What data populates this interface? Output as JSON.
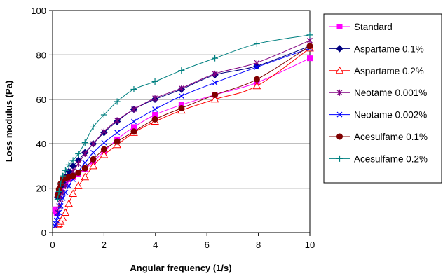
{
  "chart_data": {
    "type": "line",
    "title": "",
    "xlabel": "Angular frequency  (1/s)",
    "ylabel": "Loss modulus (Pa)",
    "xlim": [
      0,
      10
    ],
    "ylim": [
      0,
      100
    ],
    "xticks": [
      0,
      2,
      4,
      6,
      8,
      10
    ],
    "yticks": [
      0,
      20,
      40,
      60,
      80,
      100
    ],
    "grid": "horizontal",
    "legend_position": "right",
    "series": [
      {
        "name": "Standard",
        "color": "#ff00ff",
        "marker": "square",
        "x": [
          0.1,
          0.126,
          0.158,
          0.2,
          0.251,
          0.316,
          0.398,
          0.501,
          0.631,
          0.794,
          1.0,
          1.26,
          1.58,
          2.0,
          2.51,
          3.16,
          3.98,
          5.01,
          6.31,
          7.94,
          10.0
        ],
        "y": [
          10.5,
          9.5,
          8.5,
          17.0,
          18.5,
          20.0,
          21.5,
          22.5,
          24.0,
          25.0,
          26.5,
          28.5,
          32.0,
          36.5,
          42.0,
          47.5,
          53.0,
          57.5,
          62.0,
          67.5,
          78.5
        ]
      },
      {
        "name": "Aspartame 0.1%",
        "color": "#000080",
        "marker": "diamond",
        "x": [
          0.2,
          0.251,
          0.316,
          0.398,
          0.501,
          0.631,
          0.794,
          1.0,
          1.26,
          1.58,
          2.0,
          2.51,
          3.16,
          3.98,
          5.01,
          6.31,
          7.94,
          10.0
        ],
        "y": [
          16.0,
          18.0,
          20.5,
          22.5,
          25.0,
          27.5,
          30.0,
          32.5,
          36.0,
          40.0,
          45.0,
          50.0,
          55.5,
          60.0,
          64.5,
          71.0,
          75.0,
          84.0
        ]
      },
      {
        "name": "Aspartame 0.2%",
        "color": "#ff0000",
        "marker": "triangle",
        "x": [
          0.2,
          0.251,
          0.316,
          0.398,
          0.501,
          0.631,
          0.794,
          1.0,
          1.26,
          1.58,
          2.0,
          2.51,
          3.16,
          3.98,
          5.01,
          6.31,
          7.94,
          10.0
        ],
        "y": [
          3.5,
          4.0,
          5.0,
          6.5,
          9.0,
          13.0,
          17.5,
          21.0,
          25.0,
          30.0,
          35.0,
          39.5,
          45.0,
          50.0,
          55.0,
          60.0,
          66.0,
          83.0
        ]
      },
      {
        "name": "Neotame 0.001%",
        "color": "#800080",
        "marker": "star",
        "x": [
          0.2,
          0.251,
          0.316,
          0.398,
          0.501,
          0.631,
          0.794,
          1.0,
          1.26,
          1.58,
          2.0,
          2.51,
          3.16,
          3.98,
          5.01,
          6.31,
          7.94,
          10.0
        ],
        "y": [
          9.0,
          12.0,
          15.0,
          18.0,
          21.0,
          24.0,
          27.5,
          31.0,
          35.5,
          40.0,
          45.5,
          50.5,
          55.5,
          60.5,
          65.0,
          71.5,
          76.5,
          86.5
        ]
      },
      {
        "name": "Neotame 0.002%",
        "color": "#0000ff",
        "marker": "x",
        "x": [
          0.1,
          0.126,
          0.158,
          0.2,
          0.251,
          0.316,
          0.398,
          0.501,
          0.631,
          0.794,
          1.0,
          1.26,
          1.58,
          2.0,
          2.51,
          3.16,
          3.98,
          5.01,
          6.31,
          7.94,
          10.0
        ],
        "y": [
          3.0,
          4.0,
          5.5,
          7.0,
          9.0,
          12.0,
          15.5,
          18.0,
          21.0,
          24.0,
          27.5,
          31.5,
          36.0,
          40.5,
          45.0,
          50.0,
          55.5,
          61.5,
          67.5,
          74.5,
          83.0
        ]
      },
      {
        "name": "Acesulfame 0.1%",
        "color": "#800000",
        "marker": "circle",
        "x": [
          0.2,
          0.251,
          0.316,
          0.398,
          0.501,
          0.631,
          0.794,
          1.0,
          1.26,
          1.58,
          2.0,
          2.51,
          3.16,
          3.98,
          5.01,
          6.31,
          7.94,
          10.0
        ],
        "y": [
          17.0,
          19.5,
          22.0,
          24.0,
          24.5,
          25.0,
          25.5,
          27.0,
          29.0,
          33.0,
          37.5,
          41.0,
          45.5,
          51.0,
          56.0,
          62.0,
          69.0,
          84.0
        ]
      },
      {
        "name": "Acesulfame 0.2%",
        "color": "#008080",
        "marker": "plus",
        "x": [
          0.2,
          0.251,
          0.316,
          0.398,
          0.501,
          0.631,
          0.794,
          1.0,
          1.26,
          1.58,
          2.0,
          2.51,
          3.16,
          3.98,
          5.01,
          6.31,
          7.94,
          10.0
        ],
        "y": [
          15.0,
          18.5,
          22.0,
          25.5,
          28.0,
          30.5,
          32.5,
          35.5,
          40.5,
          47.5,
          53.0,
          59.0,
          64.5,
          68.0,
          73.0,
          78.5,
          85.0,
          89.0
        ]
      }
    ]
  }
}
